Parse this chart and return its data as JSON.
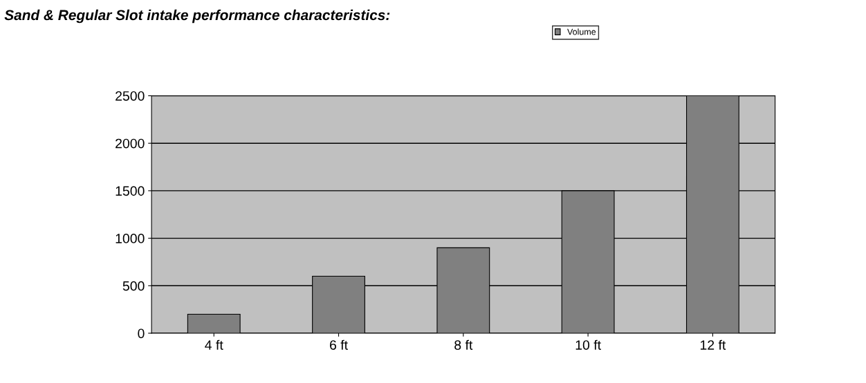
{
  "chart_data": {
    "type": "bar",
    "title": "Sand & Regular Slot intake performance characteristics:",
    "categories": [
      "4 ft",
      "6 ft",
      "8 ft",
      "10 ft",
      "12 ft"
    ],
    "series": [
      {
        "name": "Volume",
        "color": "#808080",
        "values": [
          200,
          600,
          900,
          1500,
          2500
        ]
      }
    ],
    "ylim": [
      0,
      2500
    ],
    "yticks": [
      0,
      500,
      1000,
      1500,
      2000,
      2500
    ],
    "grid": "y",
    "legend": "top"
  }
}
